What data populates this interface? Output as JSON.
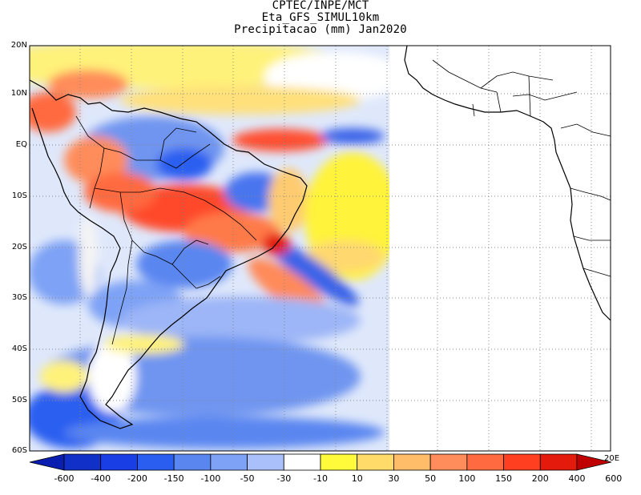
{
  "header": {
    "line1": "CPTEC/INPE/MCT",
    "line2": "Eta_GFS_SIMUL10km",
    "line3": "Precipitacao (mm) Jan2020"
  },
  "map": {
    "lat_labels": [
      "20N",
      "10N",
      "EQ",
      "10S",
      "20S",
      "30S",
      "40S",
      "50S",
      "60S"
    ],
    "lon_label_right": "20E",
    "region": "South America and South Atlantic",
    "ocean_color": "#ffffff"
  },
  "legend": {
    "labels": [
      "-600",
      "-400",
      "-200",
      "-150",
      "-100",
      "-50",
      "-30",
      "-10",
      "10",
      "30",
      "50",
      "100",
      "150",
      "200",
      "400",
      "600"
    ],
    "colors": [
      "#0a1fb0",
      "#1030c8",
      "#1a3ee6",
      "#2a5ef0",
      "#5a86f0",
      "#7ea2f5",
      "#a9c0fa",
      "#ffffff",
      "#fffb3a",
      "#ffdb6a",
      "#ffbd6a",
      "#ff8c5a",
      "#ff6a40",
      "#ff3f20",
      "#e31a0c",
      "#c00000"
    ]
  }
}
